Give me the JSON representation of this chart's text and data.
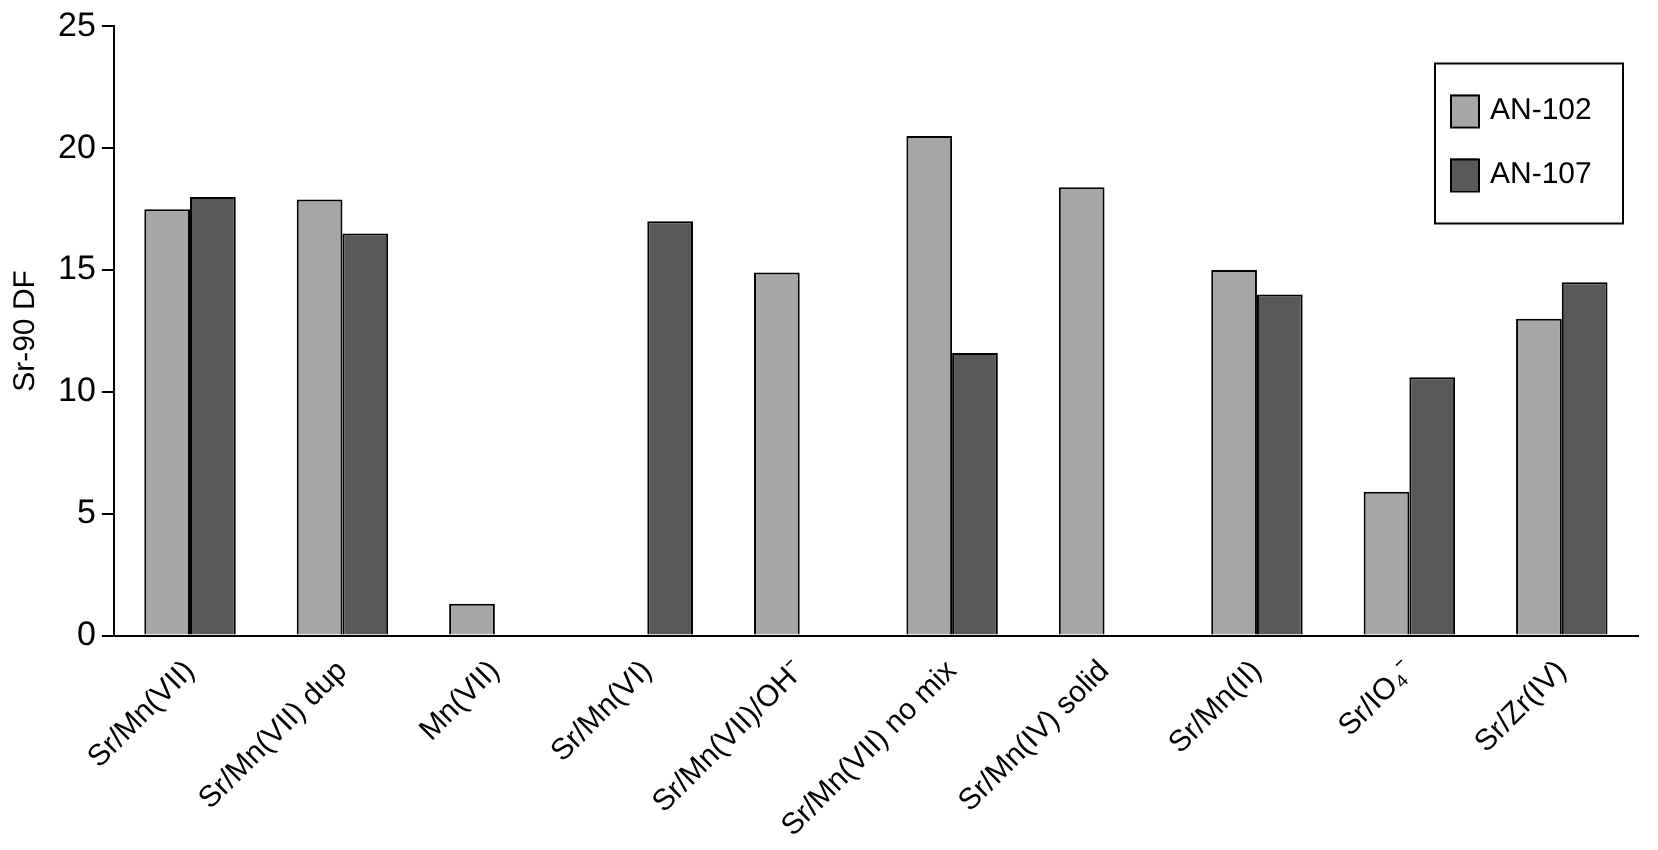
{
  "chart_data": {
    "type": "bar",
    "ylabel": "Sr-90 DF",
    "categories": [
      "Sr/Mn(VII)",
      "Sr/Mn(VII) dup",
      "Mn(VII)",
      "Sr/Mn(VI)",
      "Sr/Mn(VII)/OH⁻",
      "Sr/Mn(VII) no mix",
      "Sr/Mn(IV) solid",
      "Sr/Mn(II)",
      "Sr/IO₄⁻",
      "Sr/Zr(IV)"
    ],
    "series": [
      {
        "name": "AN-102",
        "color": "#a6a6a6",
        "values": [
          17.5,
          17.9,
          1.3,
          null,
          14.9,
          20.5,
          18.4,
          15.0,
          5.9,
          13.0
        ]
      },
      {
        "name": "AN-107",
        "color": "#595959",
        "values": [
          18.0,
          16.5,
          null,
          17.0,
          null,
          11.6,
          null,
          14.0,
          10.6,
          14.5
        ]
      }
    ],
    "ylim": [
      0,
      25
    ],
    "yticks": [
      0,
      5,
      10,
      15,
      20,
      25
    ],
    "grid": false,
    "legend": "top right"
  }
}
